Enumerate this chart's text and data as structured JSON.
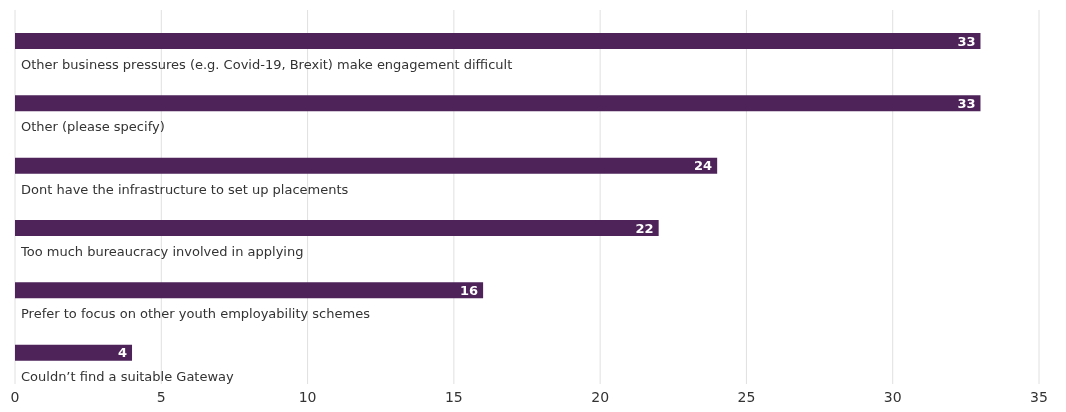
{
  "chart_data": {
    "type": "bar",
    "orientation": "horizontal",
    "categories": [
      "Other business pressures (e.g. Covid-19, Brexit) make engagement difficult",
      "Other (please specify)",
      "Dont have the infrastructure to set up placements",
      "Too much bureaucracy involved in applying",
      "Prefer to focus on other youth employability schemes",
      "Couldn’t find a suitable Gateway"
    ],
    "values": [
      33,
      33,
      24,
      22,
      16,
      4
    ],
    "color": "#4d2359",
    "data_labels": true,
    "xlim": [
      0,
      35
    ],
    "xticks": [
      0,
      5,
      10,
      15,
      20,
      25,
      30,
      35
    ],
    "grid": "x"
  }
}
